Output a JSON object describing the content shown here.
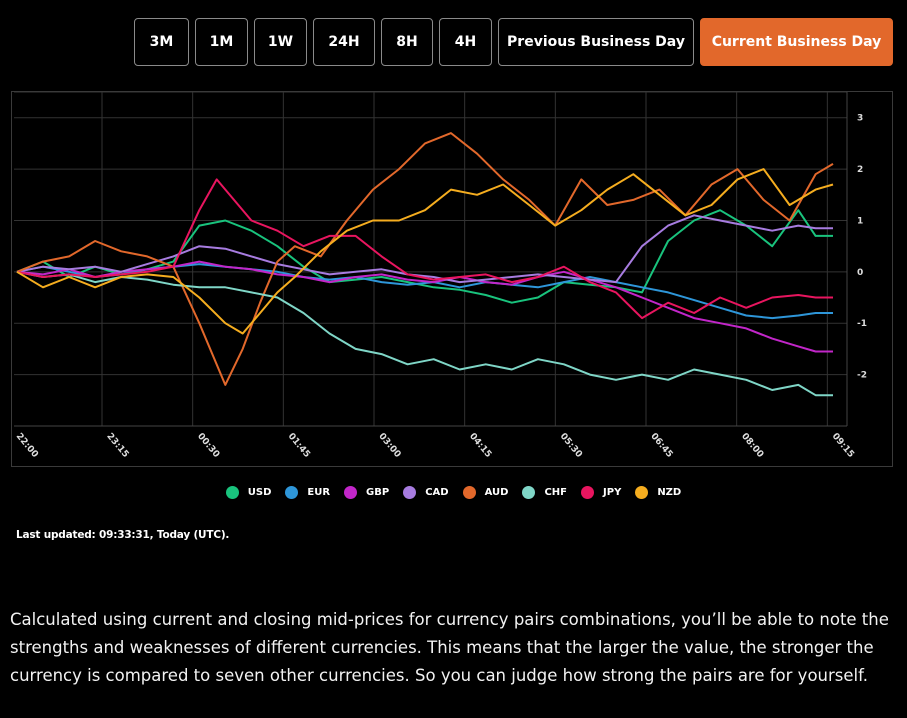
{
  "range_buttons": [
    {
      "label": "3M",
      "active": false
    },
    {
      "label": "1M",
      "active": false
    },
    {
      "label": "1W",
      "active": false
    },
    {
      "label": "24H",
      "active": false
    },
    {
      "label": "8H",
      "active": false
    },
    {
      "label": "4H",
      "active": false
    },
    {
      "label": "Previous Business Day",
      "active": false
    },
    {
      "label": "Current Business Day",
      "active": true
    }
  ],
  "last_updated": "Last updated: 09:33:31, Today (UTC).",
  "description": "Calculated using current and closing mid-prices for currency pairs combinations, you’ll be able to note the strengths and weaknesses of different currencies. This means that the larger the value, the stronger the currency is compared to seven other currencies. So you can judge how strong the pairs are for yourself.",
  "chart_data": {
    "type": "line",
    "x_ticks": [
      "22:00",
      "23:15",
      "00:30",
      "01:45",
      "03:00",
      "04:15",
      "05:30",
      "06:45",
      "08:00",
      "09:15"
    ],
    "y_ticks": [
      3,
      2,
      1,
      0,
      -1,
      -2
    ],
    "ylim": [
      -3,
      3.5
    ],
    "grid": true,
    "legend_position": "bottom",
    "series": [
      {
        "name": "USD",
        "color": "#19c37d",
        "points": [
          [
            0,
            0
          ],
          [
            3,
            0.2
          ],
          [
            6,
            -0.1
          ],
          [
            9,
            0.1
          ],
          [
            12,
            -0.05
          ],
          [
            15,
            0.05
          ],
          [
            18,
            0.2
          ],
          [
            21,
            0.9
          ],
          [
            24,
            1.0
          ],
          [
            27,
            0.8
          ],
          [
            30,
            0.5
          ],
          [
            33,
            0.1
          ],
          [
            36,
            -0.2
          ],
          [
            39,
            -0.15
          ],
          [
            42,
            -0.1
          ],
          [
            45,
            -0.2
          ],
          [
            48,
            -0.3
          ],
          [
            51,
            -0.35
          ],
          [
            54,
            -0.45
          ],
          [
            57,
            -0.6
          ],
          [
            60,
            -0.5
          ],
          [
            63,
            -0.2
          ],
          [
            66,
            -0.25
          ],
          [
            69,
            -0.3
          ],
          [
            72,
            -0.4
          ],
          [
            75,
            0.6
          ],
          [
            78,
            1.0
          ],
          [
            81,
            1.2
          ],
          [
            84,
            0.9
          ],
          [
            87,
            0.5
          ],
          [
            90,
            1.2
          ],
          [
            92,
            0.7
          ],
          [
            94,
            0.7
          ]
        ]
      },
      {
        "name": "EUR",
        "color": "#2e96d9",
        "points": [
          [
            0,
            0
          ],
          [
            3,
            0.1
          ],
          [
            6,
            0
          ],
          [
            9,
            -0.1
          ],
          [
            12,
            -0.05
          ],
          [
            15,
            0.05
          ],
          [
            18,
            0.1
          ],
          [
            21,
            0.15
          ],
          [
            24,
            0.1
          ],
          [
            27,
            0.05
          ],
          [
            30,
            0
          ],
          [
            33,
            -0.1
          ],
          [
            36,
            -0.15
          ],
          [
            39,
            -0.1
          ],
          [
            42,
            -0.2
          ],
          [
            45,
            -0.25
          ],
          [
            48,
            -0.2
          ],
          [
            51,
            -0.3
          ],
          [
            54,
            -0.2
          ],
          [
            57,
            -0.25
          ],
          [
            60,
            -0.3
          ],
          [
            63,
            -0.2
          ],
          [
            66,
            -0.1
          ],
          [
            69,
            -0.2
          ],
          [
            72,
            -0.3
          ],
          [
            75,
            -0.4
          ],
          [
            78,
            -0.55
          ],
          [
            81,
            -0.7
          ],
          [
            84,
            -0.85
          ],
          [
            87,
            -0.9
          ],
          [
            90,
            -0.85
          ],
          [
            92,
            -0.8
          ],
          [
            94,
            -0.8
          ]
        ]
      },
      {
        "name": "GBP",
        "color": "#c226c9",
        "points": [
          [
            0,
            0
          ],
          [
            3,
            -0.05
          ],
          [
            6,
            0.05
          ],
          [
            9,
            -0.1
          ],
          [
            12,
            0
          ],
          [
            15,
            0.05
          ],
          [
            18,
            0.1
          ],
          [
            21,
            0.2
          ],
          [
            24,
            0.1
          ],
          [
            27,
            0.05
          ],
          [
            30,
            -0.05
          ],
          [
            33,
            -0.1
          ],
          [
            36,
            -0.2
          ],
          [
            39,
            -0.1
          ],
          [
            42,
            -0.05
          ],
          [
            45,
            -0.15
          ],
          [
            48,
            -0.2
          ],
          [
            51,
            -0.1
          ],
          [
            54,
            -0.2
          ],
          [
            57,
            -0.25
          ],
          [
            60,
            -0.1
          ],
          [
            63,
            0
          ],
          [
            66,
            -0.15
          ],
          [
            69,
            -0.3
          ],
          [
            72,
            -0.5
          ],
          [
            75,
            -0.7
          ],
          [
            78,
            -0.9
          ],
          [
            81,
            -1.0
          ],
          [
            84,
            -1.1
          ],
          [
            87,
            -1.3
          ],
          [
            90,
            -1.45
          ],
          [
            92,
            -1.55
          ],
          [
            94,
            -1.55
          ]
        ]
      },
      {
        "name": "CAD",
        "color": "#a77ce0",
        "points": [
          [
            0,
            0
          ],
          [
            3,
            0.1
          ],
          [
            6,
            0.05
          ],
          [
            9,
            0.1
          ],
          [
            12,
            0
          ],
          [
            15,
            0.15
          ],
          [
            18,
            0.3
          ],
          [
            21,
            0.5
          ],
          [
            24,
            0.45
          ],
          [
            27,
            0.3
          ],
          [
            30,
            0.15
          ],
          [
            33,
            0.05
          ],
          [
            36,
            -0.05
          ],
          [
            39,
            0
          ],
          [
            42,
            0.05
          ],
          [
            45,
            -0.05
          ],
          [
            48,
            -0.1
          ],
          [
            51,
            -0.2
          ],
          [
            54,
            -0.15
          ],
          [
            57,
            -0.1
          ],
          [
            60,
            -0.05
          ],
          [
            63,
            -0.1
          ],
          [
            66,
            -0.15
          ],
          [
            69,
            -0.2
          ],
          [
            72,
            0.5
          ],
          [
            75,
            0.9
          ],
          [
            78,
            1.1
          ],
          [
            81,
            1.0
          ],
          [
            84,
            0.9
          ],
          [
            87,
            0.8
          ],
          [
            90,
            0.9
          ],
          [
            92,
            0.85
          ],
          [
            94,
            0.85
          ]
        ]
      },
      {
        "name": "AUD",
        "color": "#e2682b",
        "points": [
          [
            0,
            0
          ],
          [
            3,
            0.2
          ],
          [
            6,
            0.3
          ],
          [
            9,
            0.6
          ],
          [
            12,
            0.4
          ],
          [
            15,
            0.3
          ],
          [
            18,
            0.1
          ],
          [
            21,
            -1.0
          ],
          [
            24,
            -2.2
          ],
          [
            26,
            -1.5
          ],
          [
            28,
            -0.6
          ],
          [
            30,
            0.2
          ],
          [
            32,
            0.5
          ],
          [
            35,
            0.3
          ],
          [
            38,
            1.0
          ],
          [
            41,
            1.6
          ],
          [
            44,
            2.0
          ],
          [
            47,
            2.5
          ],
          [
            50,
            2.7
          ],
          [
            53,
            2.3
          ],
          [
            56,
            1.8
          ],
          [
            59,
            1.4
          ],
          [
            62,
            0.9
          ],
          [
            65,
            1.8
          ],
          [
            68,
            1.3
          ],
          [
            71,
            1.4
          ],
          [
            74,
            1.6
          ],
          [
            77,
            1.1
          ],
          [
            80,
            1.7
          ],
          [
            83,
            2.0
          ],
          [
            86,
            1.4
          ],
          [
            89,
            1.0
          ],
          [
            92,
            1.9
          ],
          [
            94,
            2.1
          ]
        ]
      },
      {
        "name": "CHF",
        "color": "#7fd6c7",
        "points": [
          [
            0,
            0
          ],
          [
            3,
            -0.1
          ],
          [
            6,
            -0.05
          ],
          [
            9,
            -0.2
          ],
          [
            12,
            -0.1
          ],
          [
            15,
            -0.15
          ],
          [
            18,
            -0.25
          ],
          [
            21,
            -0.3
          ],
          [
            24,
            -0.3
          ],
          [
            27,
            -0.4
          ],
          [
            30,
            -0.5
          ],
          [
            33,
            -0.8
          ],
          [
            36,
            -1.2
          ],
          [
            39,
            -1.5
          ],
          [
            42,
            -1.6
          ],
          [
            45,
            -1.8
          ],
          [
            48,
            -1.7
          ],
          [
            51,
            -1.9
          ],
          [
            54,
            -1.8
          ],
          [
            57,
            -1.9
          ],
          [
            60,
            -1.7
          ],
          [
            63,
            -1.8
          ],
          [
            66,
            -2.0
          ],
          [
            69,
            -2.1
          ],
          [
            72,
            -2.0
          ],
          [
            75,
            -2.1
          ],
          [
            78,
            -1.9
          ],
          [
            81,
            -2.0
          ],
          [
            84,
            -2.1
          ],
          [
            87,
            -2.3
          ],
          [
            90,
            -2.2
          ],
          [
            92,
            -2.4
          ],
          [
            94,
            -2.4
          ]
        ]
      },
      {
        "name": "JPY",
        "color": "#e8155f",
        "points": [
          [
            0,
            0
          ],
          [
            3,
            -0.1
          ],
          [
            6,
            -0.05
          ],
          [
            9,
            -0.1
          ],
          [
            12,
            -0.05
          ],
          [
            15,
            0
          ],
          [
            18,
            0.1
          ],
          [
            21,
            1.2
          ],
          [
            23,
            1.8
          ],
          [
            25,
            1.4
          ],
          [
            27,
            1.0
          ],
          [
            30,
            0.8
          ],
          [
            33,
            0.5
          ],
          [
            36,
            0.7
          ],
          [
            39,
            0.7
          ],
          [
            42,
            0.3
          ],
          [
            45,
            -0.05
          ],
          [
            48,
            -0.15
          ],
          [
            51,
            -0.1
          ],
          [
            54,
            -0.05
          ],
          [
            57,
            -0.2
          ],
          [
            60,
            -0.1
          ],
          [
            63,
            0.1
          ],
          [
            66,
            -0.2
          ],
          [
            69,
            -0.4
          ],
          [
            72,
            -0.9
          ],
          [
            75,
            -0.6
          ],
          [
            78,
            -0.8
          ],
          [
            81,
            -0.5
          ],
          [
            84,
            -0.7
          ],
          [
            87,
            -0.5
          ],
          [
            90,
            -0.45
          ],
          [
            92,
            -0.5
          ],
          [
            94,
            -0.5
          ]
        ]
      },
      {
        "name": "NZD",
        "color": "#f5ad1f",
        "points": [
          [
            0,
            0
          ],
          [
            3,
            -0.3
          ],
          [
            6,
            -0.1
          ],
          [
            9,
            -0.3
          ],
          [
            12,
            -0.1
          ],
          [
            15,
            -0.05
          ],
          [
            18,
            -0.1
          ],
          [
            21,
            -0.5
          ],
          [
            24,
            -1.0
          ],
          [
            26,
            -1.2
          ],
          [
            28,
            -0.8
          ],
          [
            30,
            -0.4
          ],
          [
            32,
            -0.1
          ],
          [
            35,
            0.4
          ],
          [
            38,
            0.8
          ],
          [
            41,
            1.0
          ],
          [
            44,
            1.0
          ],
          [
            47,
            1.2
          ],
          [
            50,
            1.6
          ],
          [
            53,
            1.5
          ],
          [
            56,
            1.7
          ],
          [
            59,
            1.3
          ],
          [
            62,
            0.9
          ],
          [
            65,
            1.2
          ],
          [
            68,
            1.6
          ],
          [
            71,
            1.9
          ],
          [
            74,
            1.5
          ],
          [
            77,
            1.1
          ],
          [
            80,
            1.3
          ],
          [
            83,
            1.8
          ],
          [
            86,
            2.0
          ],
          [
            89,
            1.3
          ],
          [
            92,
            1.6
          ],
          [
            94,
            1.7
          ]
        ]
      }
    ]
  }
}
